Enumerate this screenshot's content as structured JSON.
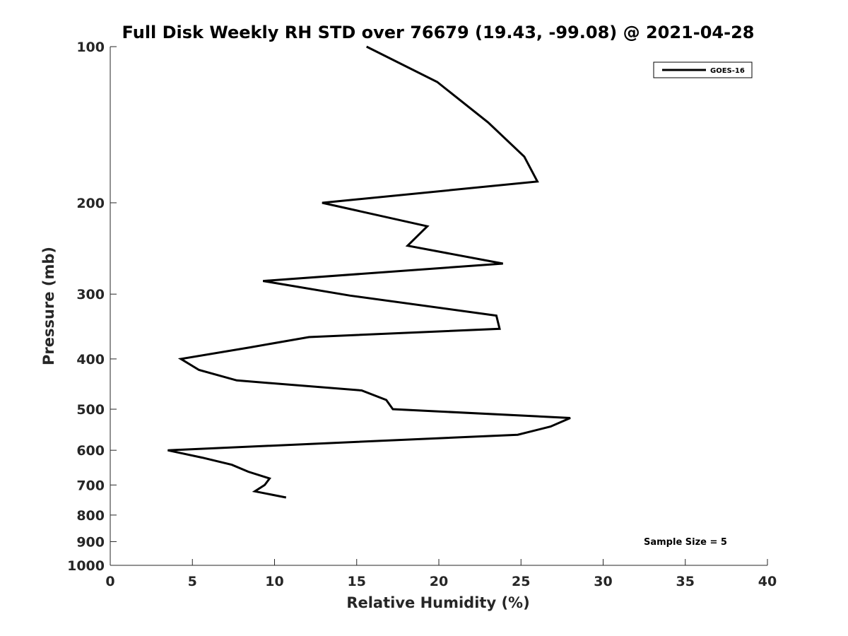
{
  "chart_data": {
    "type": "line",
    "title": "Full Disk Weekly RH STD over 76679 (19.43, -99.08) @ 2021-04-28",
    "xlabel": "Relative Humidity (%)",
    "ylabel": "Pressure (mb)",
    "xlim": [
      0,
      40
    ],
    "ylim": [
      100,
      1000
    ],
    "yscale": "log",
    "y_reversed": true,
    "xticks": [
      0,
      5,
      10,
      15,
      20,
      25,
      30,
      35,
      40
    ],
    "yticks": [
      100,
      200,
      300,
      400,
      500,
      600,
      700,
      800,
      900,
      1000
    ],
    "grid": false,
    "legend_position": "top-right",
    "annotation": "Sample Size = 5",
    "series": [
      {
        "name": "GOES-16",
        "color": "#000000",
        "x": [
          15.6,
          19.9,
          23.0,
          25.2,
          26.0,
          12.9,
          19.3,
          18.1,
          23.9,
          9.3,
          14.6,
          23.5,
          23.7,
          12.1,
          8.5,
          4.3,
          5.4,
          7.7,
          15.3,
          16.8,
          17.2,
          28.0,
          26.8,
          24.8,
          3.5,
          5.6,
          7.4,
          8.4,
          9.7,
          9.4,
          8.8,
          10.7
        ],
        "y": [
          100,
          117,
          140,
          163,
          182,
          200,
          222,
          242,
          262,
          283,
          302,
          330,
          350,
          363,
          380,
          400,
          420,
          440,
          460,
          480,
          500,
          520,
          540,
          560,
          600,
          620,
          640,
          660,
          680,
          700,
          720,
          740
        ]
      }
    ]
  }
}
